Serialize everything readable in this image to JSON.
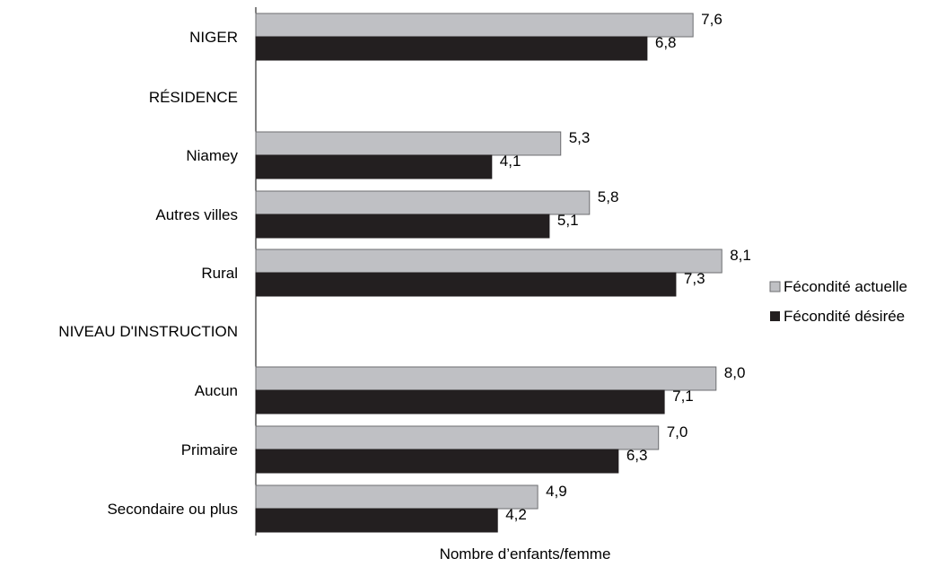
{
  "chart_data": {
    "type": "bar",
    "orientation": "horizontal",
    "xlabel": "Nombre d’enfants/femme",
    "ylabel": "",
    "xlim": [
      0,
      10
    ],
    "grid": false,
    "legend_position": "right",
    "categories": [
      "NIGER",
      "RÉSIDENCE",
      "Niamey",
      "Autres villes",
      "Rural",
      "NIVEAU D'INSTRUCTION",
      "Aucun",
      "Primaire",
      "Secondaire ou plus"
    ],
    "series": [
      {
        "name": "Fécondité actuelle",
        "color": "#bfc0c4",
        "values": [
          7.6,
          null,
          5.3,
          5.8,
          8.1,
          null,
          8.0,
          7.0,
          4.9
        ],
        "labels": [
          "7,6",
          "",
          "5,3",
          "5,8",
          "8,1",
          "",
          "8,0",
          "7,0",
          "4,9"
        ]
      },
      {
        "name": "Fécondité désirée",
        "color": "#231f20",
        "values": [
          6.8,
          null,
          4.1,
          5.1,
          7.3,
          null,
          7.1,
          6.3,
          4.2
        ],
        "labels": [
          "6,8",
          "",
          "4,1",
          "5,1",
          "7,3",
          "",
          "7,1",
          "6,3",
          "4,2"
        ]
      }
    ]
  }
}
